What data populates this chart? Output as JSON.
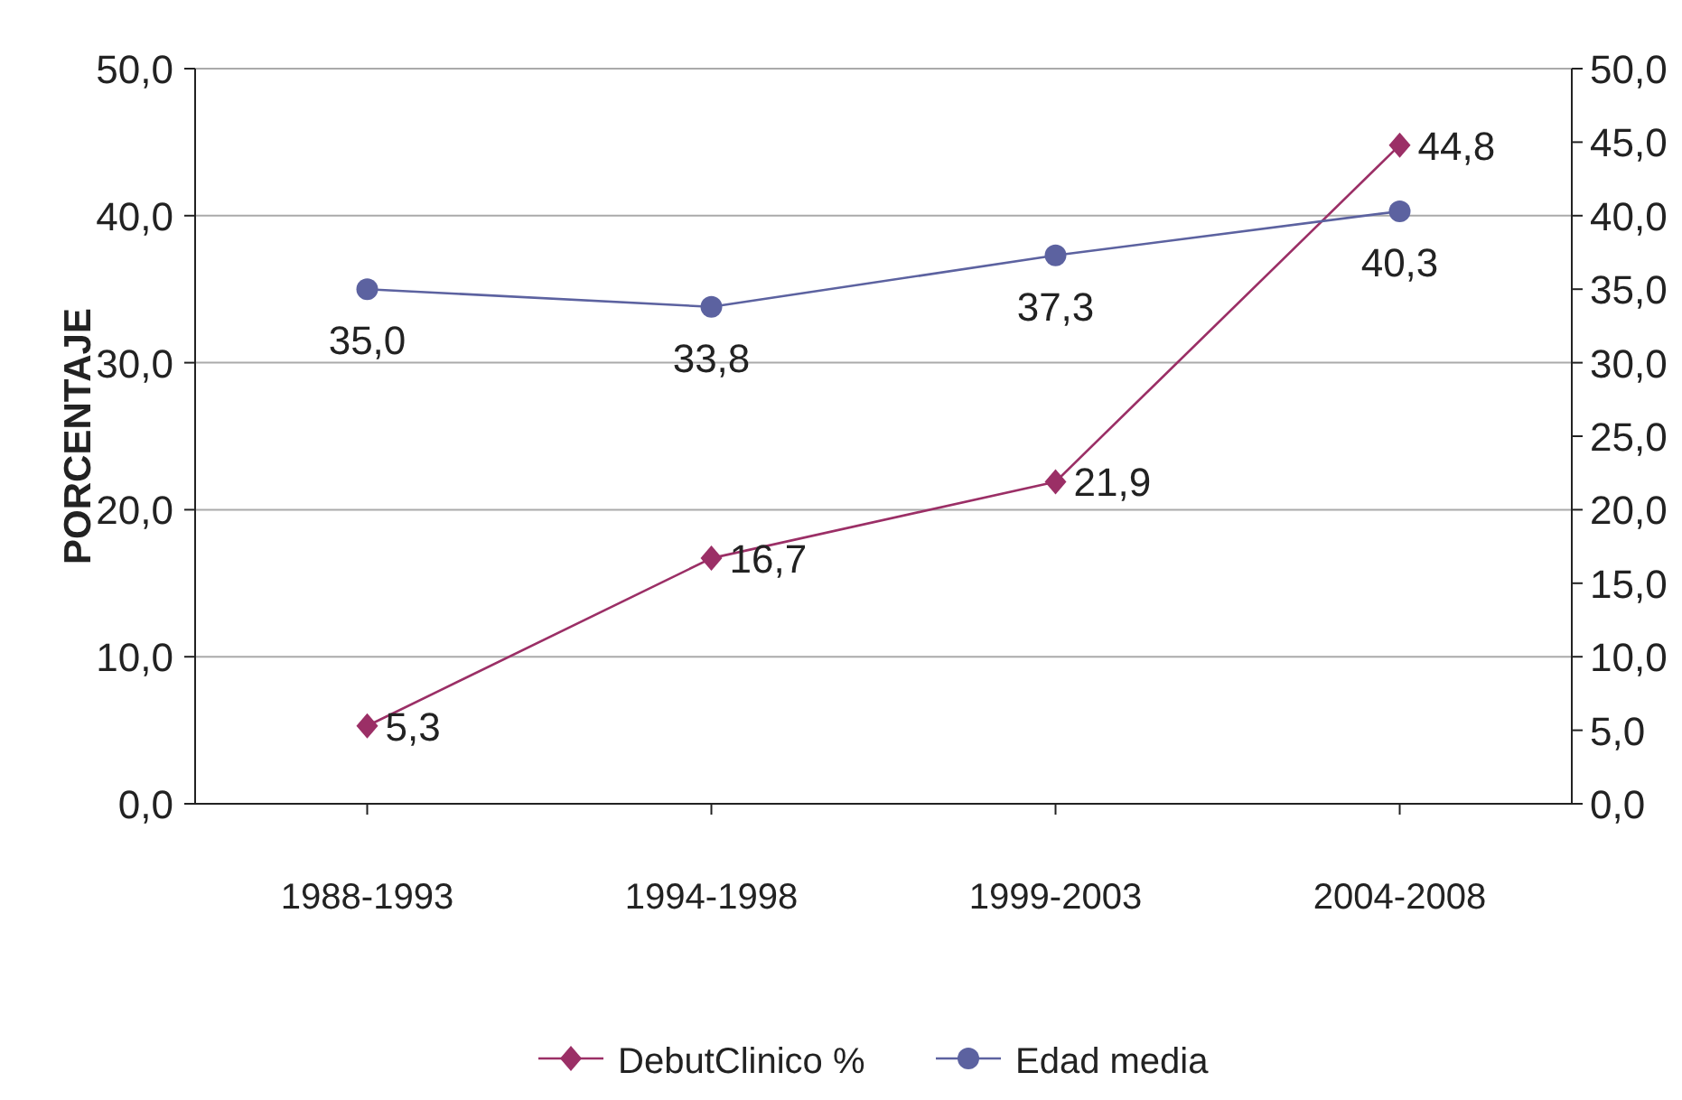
{
  "chart_data": {
    "type": "line",
    "ylabel": "PORCENTAJE",
    "categories": [
      "1988-1993",
      "1994-1998",
      "1999-2003",
      "2004-2008"
    ],
    "series": [
      {
        "name": "DebutClinico %",
        "color": "#9b2f66",
        "values": [
          5.3,
          16.7,
          21.9,
          44.8
        ],
        "value_labels": [
          "5,3",
          "16,7",
          "21,9",
          "44,8"
        ],
        "marker": "diamond"
      },
      {
        "name": "Edad media",
        "color": "#5c62a0",
        "values": [
          35.0,
          33.8,
          37.3,
          40.3
        ],
        "value_labels": [
          "35,0",
          "33,8",
          "37,3",
          "40,3"
        ],
        "marker": "circle",
        "axis": "y2"
      }
    ],
    "ylim": [
      0,
      50
    ],
    "yticks": [
      {
        "value": 0,
        "label": "0,0"
      },
      {
        "value": 10,
        "label": "10,0"
      },
      {
        "value": 20,
        "label": "20,0"
      },
      {
        "value": 30,
        "label": "30,0"
      },
      {
        "value": 40,
        "label": "40,0"
      },
      {
        "value": 50,
        "label": "50,0"
      }
    ],
    "y2lim": [
      0,
      50
    ],
    "y2ticks": [
      {
        "value": 0,
        "label": "0,0"
      },
      {
        "value": 5,
        "label": "5,0"
      },
      {
        "value": 10,
        "label": "10,0"
      },
      {
        "value": 15,
        "label": "15,0"
      },
      {
        "value": 20,
        "label": "20,0"
      },
      {
        "value": 25,
        "label": "25,0"
      },
      {
        "value": 30,
        "label": "30,0"
      },
      {
        "value": 35,
        "label": "35,0"
      },
      {
        "value": 40,
        "label": "40,0"
      },
      {
        "value": 45,
        "label": "45,0"
      },
      {
        "value": 50,
        "label": "50,0"
      }
    ],
    "grid": "y",
    "legend": "bottom",
    "line_style": "solid"
  }
}
